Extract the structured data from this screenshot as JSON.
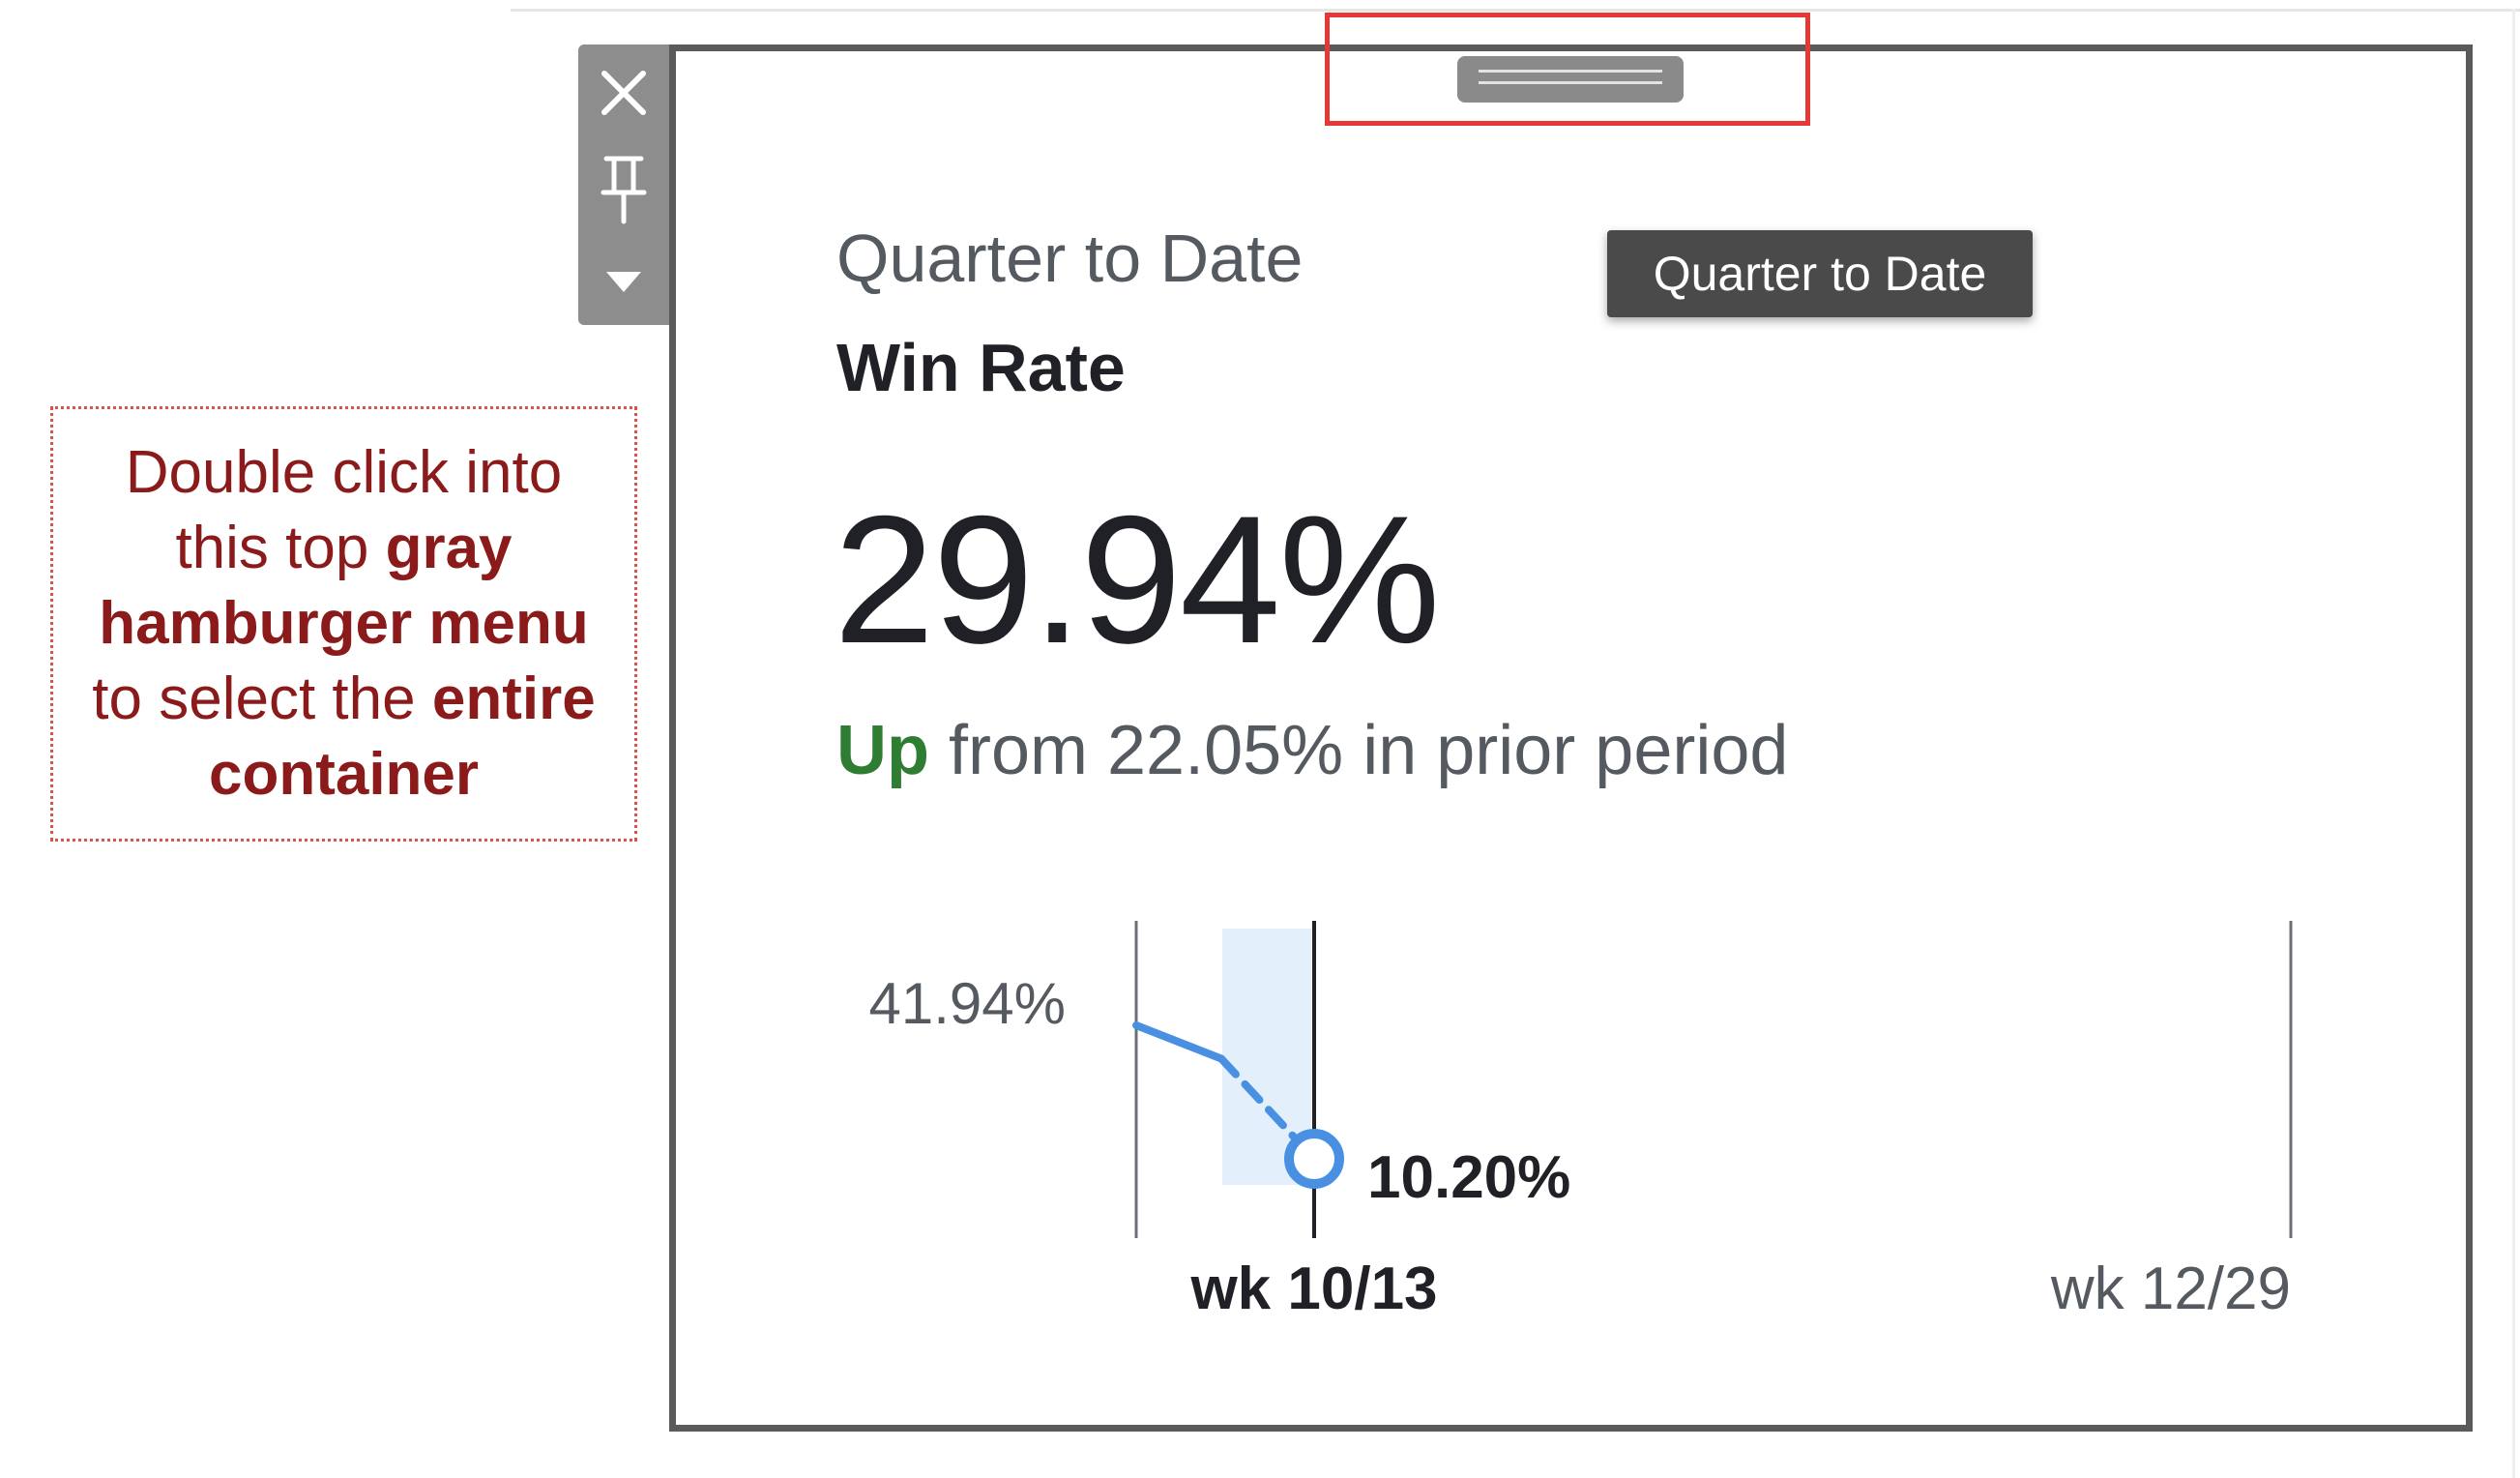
{
  "toolbar": {
    "close_icon": "close-icon",
    "pin_icon": "pin-icon",
    "menu_icon": "caret-down-icon"
  },
  "card": {
    "subtitle": "Quarter to Date",
    "metric_name": "Win Rate",
    "value": "29.94%",
    "comparison": {
      "direction": "Up",
      "text": " from 22.05% in prior period",
      "direction_color": "#2e7d32"
    }
  },
  "tooltip": {
    "text": "Quarter to Date"
  },
  "annotation": {
    "line1": "Double click into",
    "line2a": "this top ",
    "line2b": "gray",
    "line3": "hamburger menu",
    "line4a": "to select the ",
    "line4b": "entire",
    "line5": "container",
    "color": "#8b1a1a"
  },
  "colors": {
    "line": "#4a90e2",
    "highlight_band": "#e3effb",
    "drag_highlight": "#e53935",
    "container_border": "#5a5a5a"
  },
  "chart_data": {
    "type": "line",
    "y_label_top": "41.94%",
    "current_label": "10.20%",
    "x_start_label": "wk 10/13",
    "x_end_label": "wk 12/29",
    "points": [
      {
        "x": "start",
        "y": 41.94,
        "style": "solid"
      },
      {
        "x": "mid",
        "y": 34.0,
        "style": "solid"
      },
      {
        "x": "wk 10/13",
        "y": 10.2,
        "style": "dashed",
        "marker": "hollow-circle"
      }
    ],
    "ylim": [
      10.2,
      41.94
    ]
  }
}
